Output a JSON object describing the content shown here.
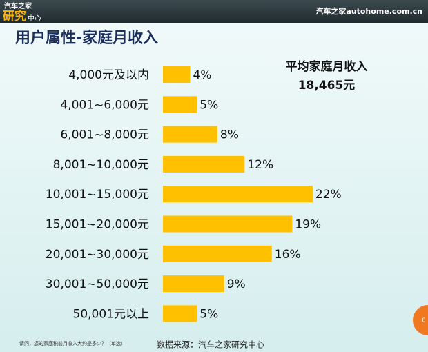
{
  "header": {
    "logo_top": "汽车之家",
    "logo_main": "研究",
    "logo_sub": "中心",
    "site": "汽车之家autohome.com.cn"
  },
  "chart_data": {
    "type": "hbar",
    "title": "用户属性-家庭月收入",
    "categories": [
      "4,000元及以内",
      "4,001~6,000元",
      "6,001~8,000元",
      "8,001~10,000元",
      "10,001~15,000元",
      "15,001~20,000元",
      "20,001~30,000元",
      "30,001~50,000元",
      "50,001元以上"
    ],
    "values": [
      4,
      5,
      8,
      12,
      22,
      19,
      16,
      9,
      5
    ],
    "value_labels": [
      "4%",
      "5%",
      "8%",
      "12%",
      "22%",
      "19%",
      "16%",
      "9%",
      "5%"
    ],
    "color": "#ffc000",
    "annotation": {
      "label": "平均家庭月收入",
      "value": "18,465元"
    }
  },
  "footer": {
    "question": "请问，您的家庭税前月收入大约是多少？（单选）",
    "source": "数据来源：汽车之家研究中心",
    "page": "8"
  }
}
